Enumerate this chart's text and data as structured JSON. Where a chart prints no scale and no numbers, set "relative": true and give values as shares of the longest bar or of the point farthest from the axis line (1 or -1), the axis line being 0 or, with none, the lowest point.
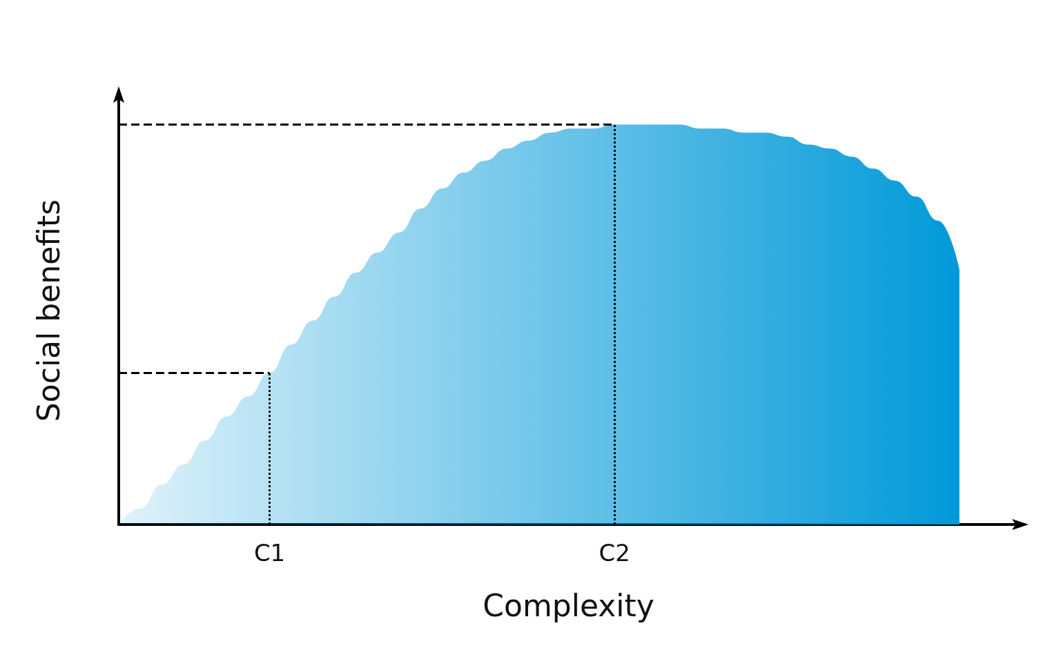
{
  "chart_data": {
    "type": "area",
    "xlabel": "Complexity",
    "ylabel": "Social benefits",
    "relative": true,
    "categories": [
      null,
      null,
      null,
      null,
      null,
      null,
      null,
      "C1",
      null,
      null,
      null,
      null,
      null,
      null,
      null,
      null,
      null,
      null,
      null,
      null,
      null,
      null,
      null,
      "C2",
      null,
      null,
      null,
      null,
      null,
      null,
      null,
      null,
      null,
      null,
      null,
      null,
      null,
      null,
      null,
      null
    ],
    "series": [
      {
        "color": "#0099d8",
        "values": [
          0,
          0.04,
          0.1,
          0.15,
          0.21,
          0.27,
          0.32,
          0.38,
          0.45,
          0.51,
          0.57,
          0.63,
          0.68,
          0.73,
          0.79,
          0.84,
          0.88,
          0.91,
          0.94,
          0.96,
          0.98,
          0.99,
          0.99,
          1,
          1,
          1,
          1,
          0.99,
          0.99,
          0.98,
          0.98,
          0.97,
          0.95,
          0.94,
          0.92,
          0.89,
          0.86,
          0.82,
          0.76,
          0.64
        ]
      }
    ],
    "ref_lines": [
      {
        "axis": "y",
        "value": 0.38,
        "line_style": "dashed"
      },
      {
        "axis": "y",
        "value": 1,
        "line_style": "dashed"
      },
      {
        "axis": "x",
        "value": "C1",
        "line_style": "dotted"
      },
      {
        "axis": "x",
        "value": "C2",
        "line_style": "dotted"
      }
    ],
    "grid": false
  }
}
